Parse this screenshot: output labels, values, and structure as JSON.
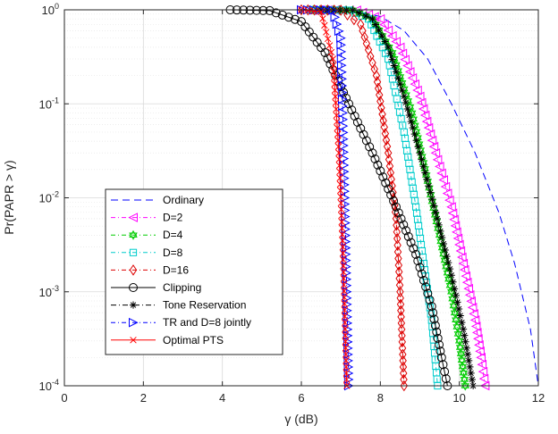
{
  "chart_data": {
    "type": "line",
    "xlabel": "γ (dB)",
    "ylabel": "Pr(PAPR > γ)",
    "xlim": [
      0,
      12
    ],
    "ylim": [
      0.0001,
      1
    ],
    "y_scale": "log",
    "grid": true,
    "legend_position": "lower-left",
    "x_ticks": [
      "0",
      "2",
      "4",
      "6",
      "8",
      "10",
      "12"
    ],
    "y_ticks": [
      {
        "base": "10",
        "exp": "0",
        "value": 1
      },
      {
        "base": "10",
        "exp": "-1",
        "value": 0.1
      },
      {
        "base": "10",
        "exp": "-2",
        "value": 0.01
      },
      {
        "base": "10",
        "exp": "-3",
        "value": 0.001
      },
      {
        "base": "10",
        "exp": "-4",
        "value": 0.0001
      }
    ],
    "series": [
      {
        "name": "Ordinary",
        "color": "#0000ff",
        "dash": "8,5",
        "marker": "none",
        "points": [
          [
            5.8,
            1
          ],
          [
            6.6,
            0.99
          ],
          [
            7.4,
            0.95
          ],
          [
            8.0,
            0.85
          ],
          [
            8.6,
            0.6
          ],
          [
            9.2,
            0.3
          ],
          [
            9.8,
            0.1
          ],
          [
            10.4,
            0.03
          ],
          [
            11.0,
            0.007
          ],
          [
            11.4,
            0.002
          ],
          [
            11.8,
            0.0004
          ],
          [
            12.0,
            0.0001
          ]
        ]
      },
      {
        "name": "D=2",
        "color": "#ff00ff",
        "dash": "5,3,1,3",
        "marker": "tri-left",
        "points": [
          [
            6.3,
            1
          ],
          [
            7.4,
            0.99
          ],
          [
            8.0,
            0.8
          ],
          [
            8.5,
            0.4
          ],
          [
            9.0,
            0.12
          ],
          [
            9.4,
            0.03
          ],
          [
            9.8,
            0.008
          ],
          [
            10.1,
            0.002
          ],
          [
            10.4,
            0.0005
          ],
          [
            10.55,
            0.0002
          ],
          [
            10.65,
            0.0001
          ]
        ]
      },
      {
        "name": "D=4",
        "color": "#00cc00",
        "dash": "5,3,1,3",
        "marker": "hexagram",
        "points": [
          [
            6.3,
            1
          ],
          [
            7.3,
            0.99
          ],
          [
            7.8,
            0.8
          ],
          [
            8.3,
            0.35
          ],
          [
            8.8,
            0.08
          ],
          [
            9.2,
            0.015
          ],
          [
            9.5,
            0.004
          ],
          [
            9.8,
            0.001
          ],
          [
            10.0,
            0.0003
          ],
          [
            10.15,
            0.0001
          ]
        ]
      },
      {
        "name": "D=8",
        "color": "#00cccc",
        "dash": "5,3,1,3",
        "marker": "square",
        "points": [
          [
            6.2,
            1
          ],
          [
            7.2,
            0.99
          ],
          [
            7.7,
            0.8
          ],
          [
            8.2,
            0.3
          ],
          [
            8.6,
            0.05
          ],
          [
            8.9,
            0.008
          ],
          [
            9.1,
            0.002
          ],
          [
            9.3,
            0.0005
          ],
          [
            9.45,
            0.0001
          ]
        ]
      },
      {
        "name": "D=16",
        "color": "#dd0000",
        "dash": "5,3,1,3",
        "marker": "diamond",
        "points": [
          [
            6.0,
            1
          ],
          [
            7.0,
            0.99
          ],
          [
            7.5,
            0.7
          ],
          [
            7.9,
            0.2
          ],
          [
            8.2,
            0.03
          ],
          [
            8.4,
            0.006
          ],
          [
            8.5,
            0.001
          ],
          [
            8.6,
            0.0001
          ]
        ]
      },
      {
        "name": "Clipping",
        "color": "#000000",
        "dash": "none",
        "marker": "circle",
        "points": [
          [
            4.2,
            1
          ],
          [
            5.2,
            0.98
          ],
          [
            6.0,
            0.75
          ],
          [
            6.6,
            0.35
          ],
          [
            7.2,
            0.1
          ],
          [
            7.8,
            0.03
          ],
          [
            8.4,
            0.008
          ],
          [
            8.9,
            0.0025
          ],
          [
            9.3,
            0.0007
          ],
          [
            9.55,
            0.0002
          ],
          [
            9.7,
            0.0001
          ]
        ]
      },
      {
        "name": "Tone Reservation",
        "color": "#000000",
        "dash": "6,3,1,3",
        "marker": "asterisk",
        "points": [
          [
            6.5,
            1
          ],
          [
            7.3,
            0.99
          ],
          [
            7.8,
            0.8
          ],
          [
            8.2,
            0.4
          ],
          [
            8.6,
            0.12
          ],
          [
            9.0,
            0.03
          ],
          [
            9.4,
            0.007
          ],
          [
            9.8,
            0.0015
          ],
          [
            10.1,
            0.0004
          ],
          [
            10.35,
            0.0001
          ]
        ]
      },
      {
        "name": "TR and D=8 jointly",
        "color": "#0000ff",
        "dash": "5,3,1,3",
        "marker": "tri-right",
        "points": [
          [
            6.0,
            1
          ],
          [
            6.8,
            0.99
          ],
          [
            7.0,
            0.5
          ],
          [
            7.05,
            0.08
          ],
          [
            7.1,
            0.01
          ],
          [
            7.15,
            0.001
          ],
          [
            7.2,
            0.0001
          ]
        ]
      },
      {
        "name": "Optimal PTS",
        "color": "#ff0000",
        "dash": "none",
        "marker": "x",
        "points": [
          [
            6.0,
            1
          ],
          [
            6.5,
            0.95
          ],
          [
            6.8,
            0.3
          ],
          [
            6.95,
            0.03
          ],
          [
            7.05,
            0.003
          ],
          [
            7.15,
            0.0001
          ]
        ]
      }
    ]
  }
}
